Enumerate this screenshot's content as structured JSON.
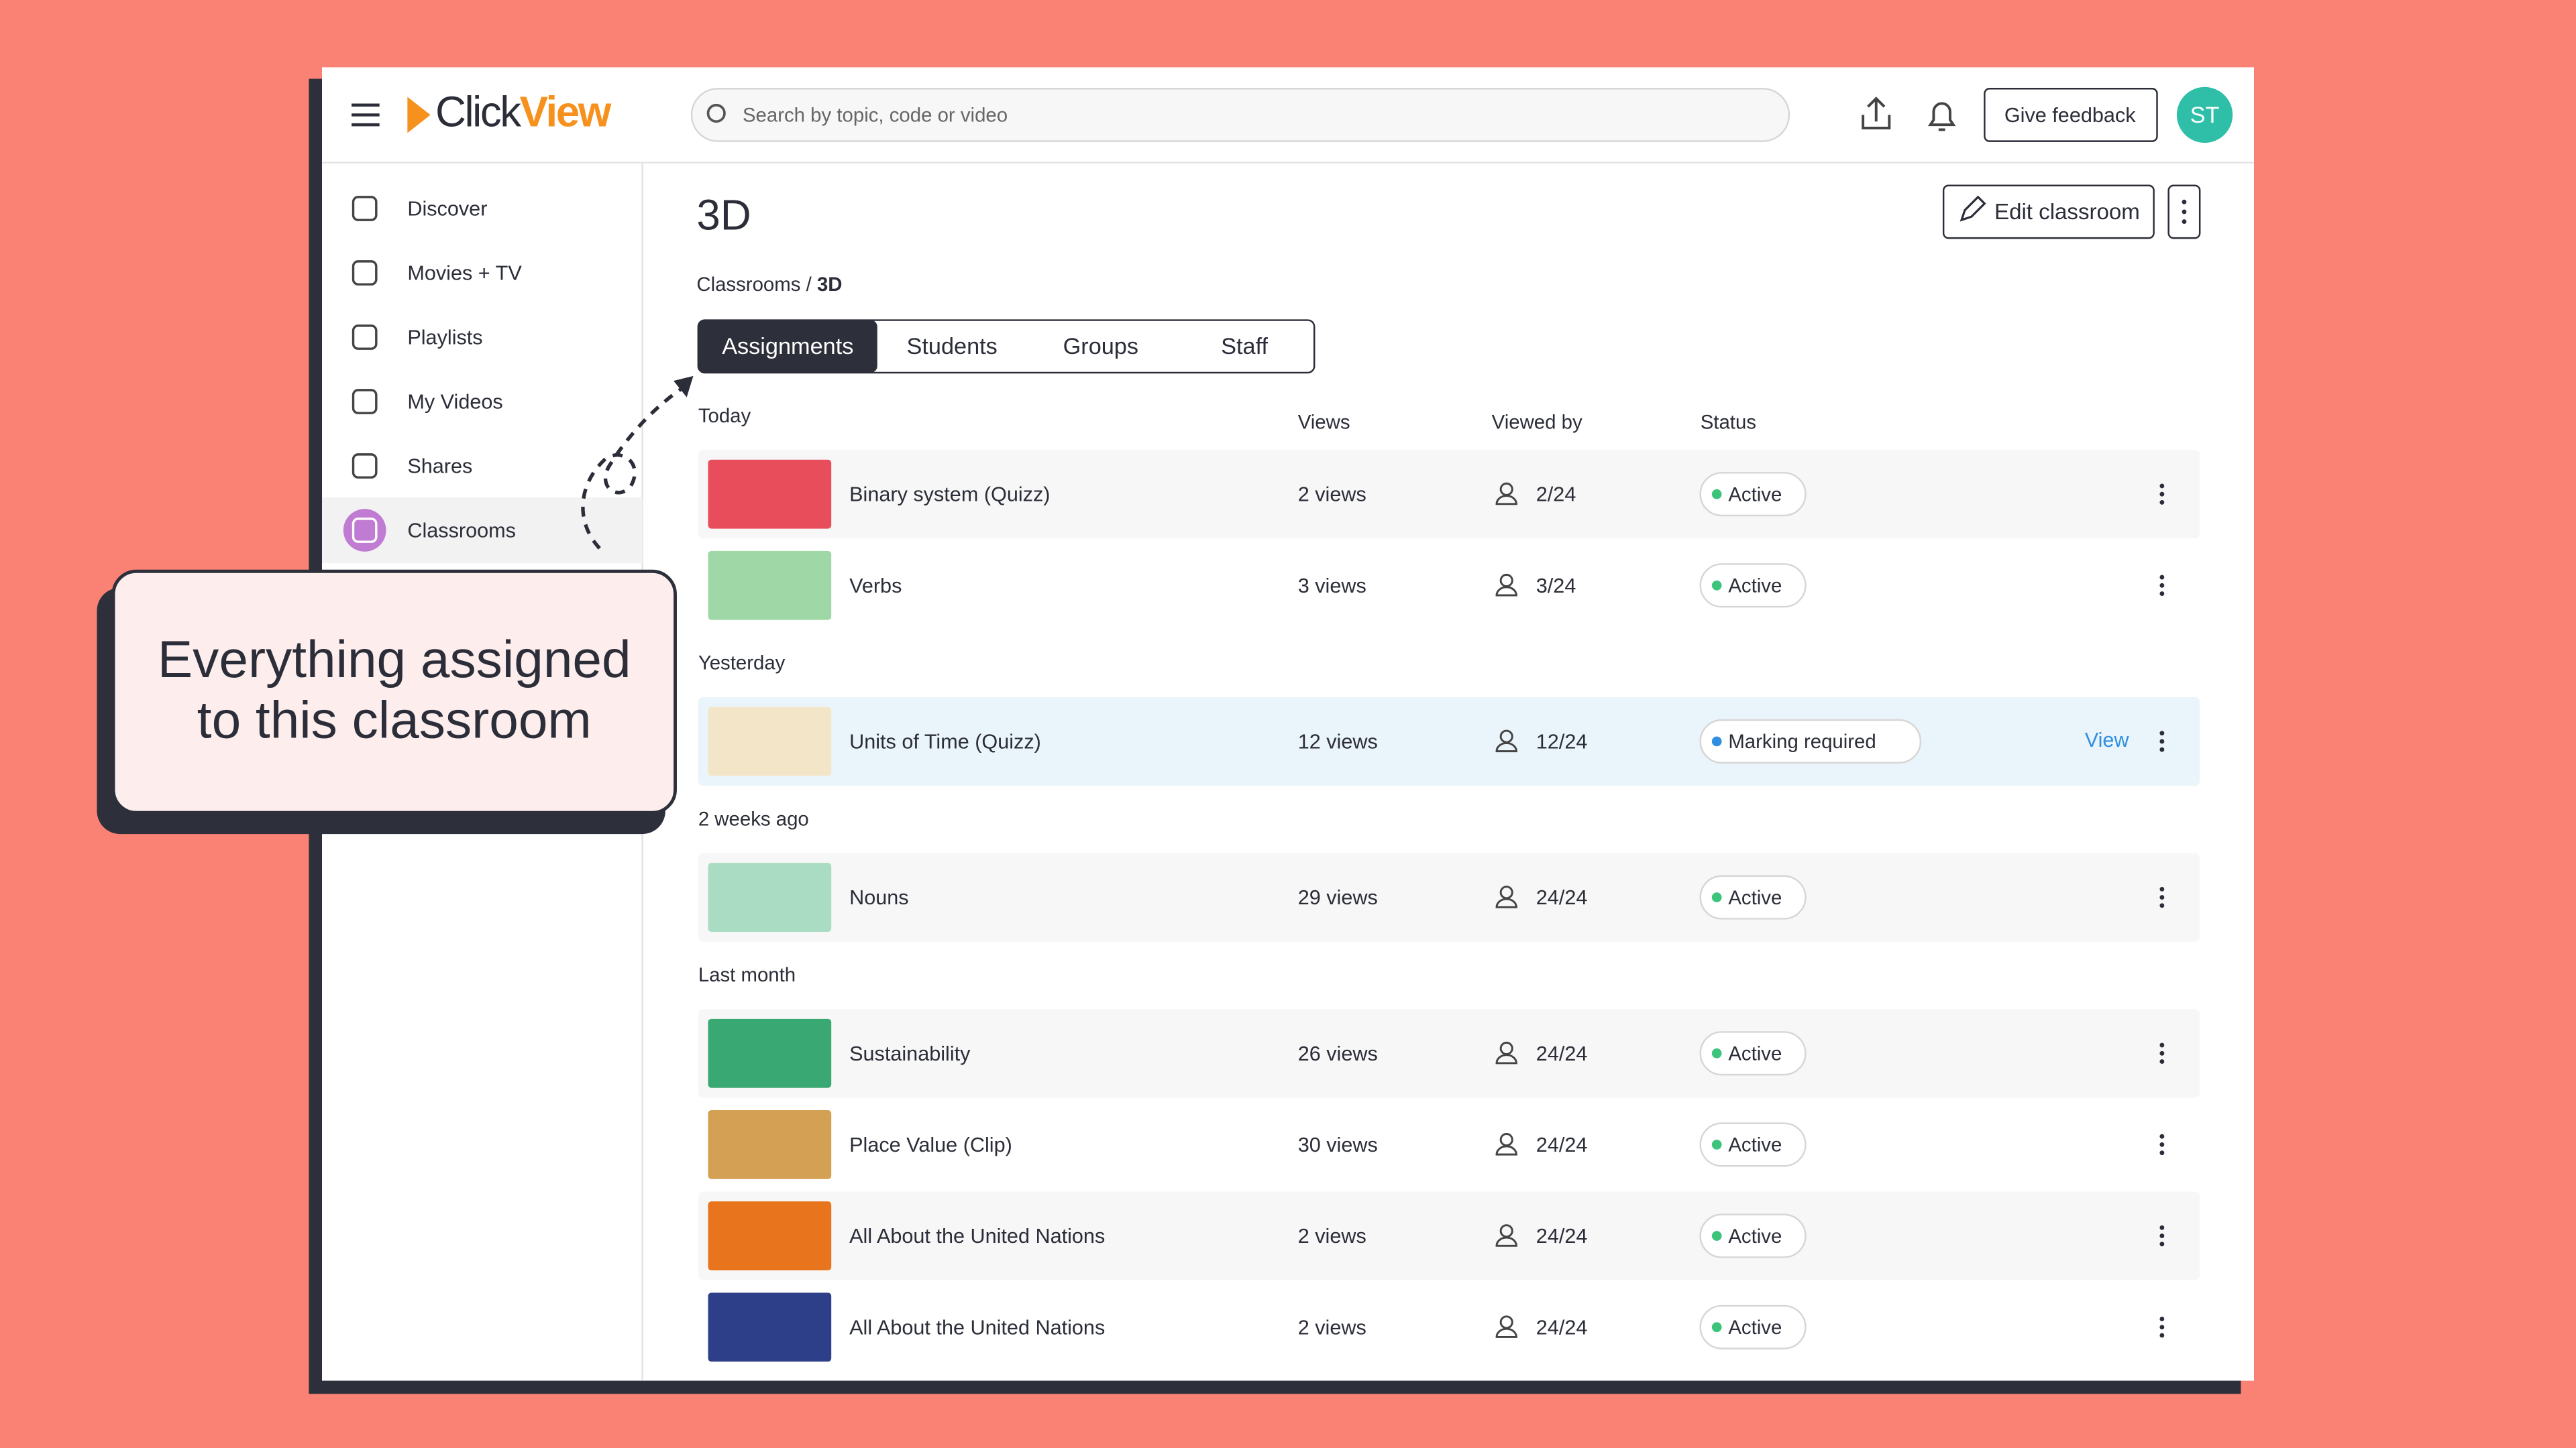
{
  "header": {
    "logo": {
      "part1": "Click",
      "part2": "View"
    },
    "search_placeholder": "Search by topic, code or video",
    "feedback_button": "Give feedback",
    "avatar": "ST"
  },
  "sidebar": {
    "items": [
      "Discover",
      "Movies + TV",
      "Playlists",
      "My Videos",
      "Shares",
      "Classrooms"
    ],
    "active": 5
  },
  "main": {
    "title": "3D",
    "edit_button": "Edit classroom",
    "breadcrumb": {
      "parent": "Classrooms",
      "separator": "/",
      "current": "3D"
    },
    "tabs": [
      "Assignments",
      "Students",
      "Groups",
      "Staff"
    ],
    "active_tab": 0,
    "columns": {
      "views": "Views",
      "viewed_by": "Viewed by",
      "status": "Status"
    },
    "groups": [
      {
        "label": "Today",
        "rows": [
          {
            "title": "Binary system (Quizz)",
            "views": "2 views",
            "viewed_by": "2/24",
            "status": "Active"
          },
          {
            "title": "Verbs",
            "views": "3 views",
            "viewed_by": "3/24",
            "status": "Active"
          }
        ]
      },
      {
        "label": "Yesterday",
        "rows": [
          {
            "title": "Units of Time (Quizz)",
            "views": "12 views",
            "viewed_by": "12/24",
            "status": "Marking required",
            "action": "View"
          }
        ]
      },
      {
        "label": "2 weeks ago",
        "rows": [
          {
            "title": "Nouns",
            "views": "29 views",
            "viewed_by": "24/24",
            "status": "Active"
          }
        ]
      },
      {
        "label": "Last month",
        "rows": [
          {
            "title": "Sustainability",
            "views": "26 views",
            "viewed_by": "24/24",
            "status": "Active"
          },
          {
            "title": "Place Value (Clip)",
            "views": "30 views",
            "viewed_by": "24/24",
            "status": "Active"
          },
          {
            "title": "All About the United Nations",
            "views": "2 views",
            "viewed_by": "24/24",
            "status": "Active"
          },
          {
            "title": "All About the United Nations",
            "views": "2 views",
            "viewed_by": "24/24",
            "status": "Active"
          }
        ]
      }
    ]
  },
  "callout": {
    "line1": "Everything assigned",
    "line2": "to this classroom"
  }
}
